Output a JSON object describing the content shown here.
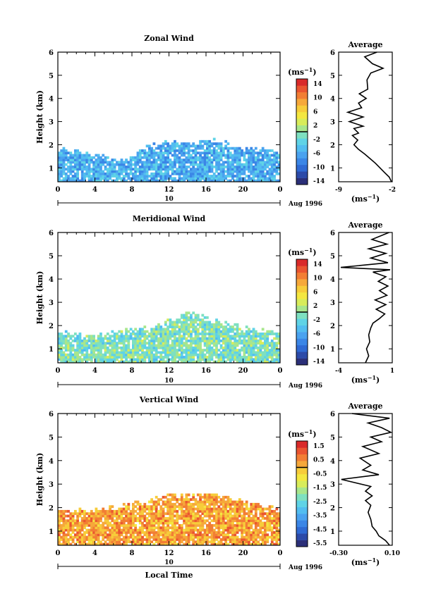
{
  "colors": {
    "scale": [
      "#2b2f78",
      "#2c4aa8",
      "#2f6ad3",
      "#3b86e6",
      "#4aa2ef",
      "#52bdf0",
      "#5fd3e6",
      "#7ee0c0",
      "#a8e68c",
      "#d8ec5a",
      "#f4e740",
      "#f7cc3a",
      "#f6a83a",
      "#f27e34",
      "#ea5530",
      "#d92a2a"
    ],
    "line": "#000000"
  },
  "chart_data": [
    {
      "type": "heatmap",
      "title": "Zonal Wind",
      "xlabel": "",
      "ylabel": "Height (km)",
      "xlim": [
        0,
        24
      ],
      "ylim": [
        0.4,
        6
      ],
      "xticks": [
        "0",
        "4",
        "8",
        "12",
        "16",
        "20",
        "0"
      ],
      "yticks": [
        "1",
        "2",
        "3",
        "4",
        "5",
        "6"
      ],
      "day_label": "10",
      "date_label": "Aug 1996",
      "colorbar": {
        "unit": "(ms-1)",
        "unit_base": "(ms",
        "unit_exp": "−1",
        "unit_close": ")",
        "labels": [
          "14",
          "10",
          "6",
          "2",
          "-2",
          "-6",
          "-10",
          "-14"
        ],
        "min": -16,
        "max": 16
      },
      "top_profile": [
        [
          0,
          1.8
        ],
        [
          2,
          1.7
        ],
        [
          4,
          1.6
        ],
        [
          6,
          1.4
        ],
        [
          8,
          1.4
        ],
        [
          9,
          1.8
        ],
        [
          10,
          2.0
        ],
        [
          12,
          2.1
        ],
        [
          14,
          2.1
        ],
        [
          16,
          2.2
        ],
        [
          18,
          2.1
        ],
        [
          20,
          1.8
        ],
        [
          22,
          1.8
        ],
        [
          24,
          1.7
        ]
      ],
      "base_value": -6,
      "avg_profile": {
        "title": "Average",
        "xlabel": "(ms-1)",
        "xlim": [
          -9,
          -2
        ],
        "xticks": [
          "-9",
          "-2"
        ],
        "yticks": [
          "1",
          "2",
          "3",
          "4",
          "5",
          "6"
        ],
        "points": [
          [
            -2.1,
            0.4
          ],
          [
            -2.4,
            0.6
          ],
          [
            -3.0,
            0.8
          ],
          [
            -3.6,
            1.0
          ],
          [
            -4.2,
            1.2
          ],
          [
            -4.9,
            1.4
          ],
          [
            -5.6,
            1.6
          ],
          [
            -6.4,
            1.8
          ],
          [
            -7.0,
            2.0
          ],
          [
            -6.5,
            2.2
          ],
          [
            -7.2,
            2.4
          ],
          [
            -6.4,
            2.5
          ],
          [
            -7.0,
            2.7
          ],
          [
            -5.8,
            2.8
          ],
          [
            -7.6,
            3.0
          ],
          [
            -5.8,
            3.2
          ],
          [
            -7.8,
            3.4
          ],
          [
            -6.0,
            3.6
          ],
          [
            -6.4,
            3.8
          ],
          [
            -5.4,
            4.0
          ],
          [
            -6.3,
            4.2
          ],
          [
            -5.2,
            4.4
          ],
          [
            -5.3,
            4.8
          ],
          [
            -4.8,
            5.1
          ],
          [
            -3.2,
            5.3
          ],
          [
            -4.6,
            5.5
          ],
          [
            -5.6,
            5.8
          ],
          [
            -4.0,
            6.0
          ]
        ]
      }
    },
    {
      "type": "heatmap",
      "title": "Meridional Wind",
      "xlabel": "",
      "ylabel": "Height (km)",
      "xlim": [
        0,
        24
      ],
      "ylim": [
        0.4,
        6
      ],
      "xticks": [
        "0",
        "4",
        "8",
        "12",
        "16",
        "20",
        "0"
      ],
      "yticks": [
        "1",
        "2",
        "3",
        "4",
        "5",
        "6"
      ],
      "day_label": "10",
      "date_label": "Aug 1996",
      "colorbar": {
        "unit": "(ms-1)",
        "unit_base": "(ms",
        "unit_exp": "−1",
        "unit_close": ")",
        "labels": [
          "14",
          "10",
          "6",
          "2",
          "-2",
          "-6",
          "-10",
          "-14"
        ],
        "min": -16,
        "max": 16
      },
      "top_profile": [
        [
          0,
          1.7
        ],
        [
          2,
          1.6
        ],
        [
          4,
          1.6
        ],
        [
          6,
          1.7
        ],
        [
          8,
          1.8
        ],
        [
          10,
          1.9
        ],
        [
          12,
          2.2
        ],
        [
          14,
          2.5
        ],
        [
          16,
          2.3
        ],
        [
          18,
          2.1
        ],
        [
          20,
          1.9
        ],
        [
          22,
          1.8
        ],
        [
          24,
          1.7
        ]
      ],
      "base_value": -1,
      "avg_profile": {
        "title": "Average",
        "xlabel": "(ms-1)",
        "xlim": [
          -4,
          1
        ],
        "xticks": [
          "-4",
          "1"
        ],
        "yticks": [
          "1",
          "2",
          "3",
          "4",
          "5",
          "6"
        ],
        "points": [
          [
            -1.5,
            0.4
          ],
          [
            -1.2,
            0.7
          ],
          [
            -1.4,
            1.0
          ],
          [
            -1.1,
            1.3
          ],
          [
            -1.2,
            1.6
          ],
          [
            -1.0,
            1.9
          ],
          [
            -0.8,
            2.1
          ],
          [
            -0.2,
            2.3
          ],
          [
            0.3,
            2.5
          ],
          [
            -0.5,
            2.7
          ],
          [
            0.4,
            2.9
          ],
          [
            -0.6,
            3.1
          ],
          [
            0.5,
            3.3
          ],
          [
            -0.2,
            3.5
          ],
          [
            0.6,
            3.7
          ],
          [
            -0.3,
            3.9
          ],
          [
            0.4,
            4.1
          ],
          [
            -0.8,
            4.3
          ],
          [
            0.8,
            4.4
          ],
          [
            -3.8,
            4.5
          ],
          [
            0.6,
            4.7
          ],
          [
            -1.0,
            4.9
          ],
          [
            0.4,
            5.1
          ],
          [
            -1.2,
            5.3
          ],
          [
            0.5,
            5.5
          ],
          [
            -0.9,
            5.7
          ],
          [
            0.7,
            6.0
          ]
        ]
      }
    },
    {
      "type": "heatmap",
      "title": "Vertical Wind",
      "xlabel": "Local Time",
      "ylabel": "Height (km)",
      "xlim": [
        0,
        24
      ],
      "ylim": [
        0.4,
        6
      ],
      "xticks": [
        "0",
        "4",
        "8",
        "12",
        "16",
        "20",
        "0"
      ],
      "yticks": [
        "1",
        "2",
        "3",
        "4",
        "5",
        "6"
      ],
      "day_label": "10",
      "date_label": "Aug 1996",
      "colorbar": {
        "unit": "(ms-1)",
        "unit_base": "(ms",
        "unit_exp": "−1",
        "unit_close": ")",
        "labels": [
          "1.5",
          "0.5",
          "-0.5",
          "-1.5",
          "-2.5",
          "-3.5",
          "-4.5",
          "-5.5"
        ],
        "min": -6,
        "max": 2
      },
      "top_profile": [
        [
          0,
          1.9
        ],
        [
          2,
          1.9
        ],
        [
          4,
          1.9
        ],
        [
          6,
          2.0
        ],
        [
          8,
          2.1
        ],
        [
          10,
          2.3
        ],
        [
          12,
          2.5
        ],
        [
          14,
          2.5
        ],
        [
          16,
          2.6
        ],
        [
          18,
          2.5
        ],
        [
          20,
          2.3
        ],
        [
          22,
          2.1
        ],
        [
          24,
          1.9
        ]
      ],
      "base_value": 0.3,
      "avg_profile": {
        "title": "Average",
        "xlabel": "(ms-1)",
        "xlim": [
          -0.3,
          0.1
        ],
        "xticks": [
          "-0.30",
          "0.10"
        ],
        "yticks": [
          "1",
          "2",
          "3",
          "4",
          "5",
          "6"
        ],
        "points": [
          [
            0.08,
            0.4
          ],
          [
            0.05,
            0.6
          ],
          [
            0.0,
            0.8
          ],
          [
            -0.02,
            1.0
          ],
          [
            -0.05,
            1.2
          ],
          [
            -0.06,
            1.5
          ],
          [
            -0.08,
            1.8
          ],
          [
            -0.06,
            2.1
          ],
          [
            -0.1,
            2.3
          ],
          [
            -0.05,
            2.5
          ],
          [
            -0.1,
            2.7
          ],
          [
            -0.06,
            2.9
          ],
          [
            -0.28,
            3.2
          ],
          [
            0.0,
            3.4
          ],
          [
            -0.12,
            3.6
          ],
          [
            -0.06,
            3.8
          ],
          [
            -0.14,
            4.1
          ],
          [
            0.0,
            4.3
          ],
          [
            -0.12,
            4.6
          ],
          [
            0.02,
            4.8
          ],
          [
            -0.06,
            5.0
          ],
          [
            0.09,
            5.2
          ],
          [
            0.02,
            5.4
          ],
          [
            -0.08,
            5.6
          ],
          [
            0.08,
            5.8
          ],
          [
            -0.2,
            6.0
          ]
        ]
      }
    }
  ]
}
